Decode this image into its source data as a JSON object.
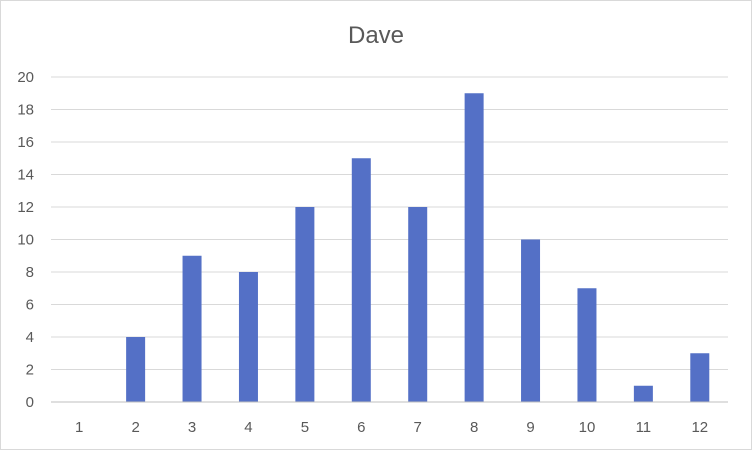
{
  "chart_data": {
    "type": "bar",
    "title": "Dave",
    "xlabel": "",
    "ylabel": "",
    "categories": [
      "1",
      "2",
      "3",
      "4",
      "5",
      "6",
      "7",
      "8",
      "9",
      "10",
      "11",
      "12"
    ],
    "values": [
      0,
      4,
      9,
      8,
      12,
      15,
      12,
      19,
      10,
      7,
      1,
      3
    ],
    "ylim": [
      0,
      20
    ],
    "yticks": [
      0,
      2,
      4,
      6,
      8,
      10,
      12,
      14,
      16,
      18,
      20
    ],
    "grid": true,
    "legend": "none",
    "bar_color": "#5470c6"
  }
}
